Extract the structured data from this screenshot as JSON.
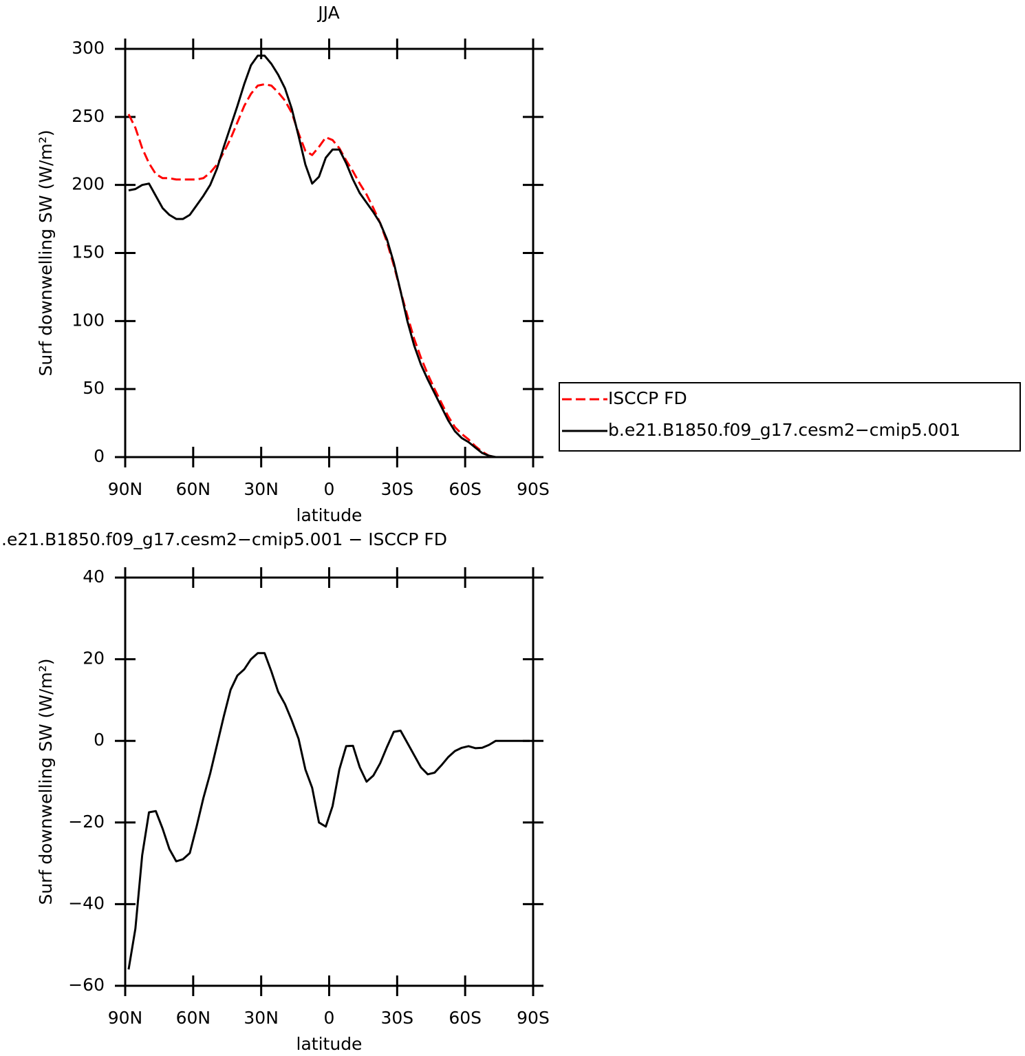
{
  "chart_data": [
    {
      "type": "line",
      "title": "JJA",
      "xlabel": "latitude",
      "ylabel": "Surf downwelling SW (W/m²)",
      "x": [
        88.5,
        85.5,
        82.5,
        79.5,
        76.5,
        73.5,
        70.5,
        67.5,
        64.5,
        61.5,
        58.5,
        55.5,
        52.5,
        49.5,
        46.5,
        43.5,
        40.5,
        37.5,
        34.5,
        31.5,
        28.5,
        25.5,
        22.5,
        19.5,
        16.5,
        13.5,
        10.5,
        7.5,
        4.5,
        1.5,
        -1.5,
        -4.5,
        -7.5,
        -10.5,
        -13.5,
        -16.5,
        -19.5,
        -22.5,
        -25.5,
        -28.5,
        -31.5,
        -34.5,
        -37.5,
        -40.5,
        -43.5,
        -46.5,
        -49.5,
        -52.5,
        -55.5,
        -58.5,
        -61.5,
        -64.5,
        -67.5,
        -70.5,
        -73.5,
        -76.5,
        -79.5,
        -82.5,
        -85.5,
        -88.5
      ],
      "series": [
        {
          "name": "ISCCP FD",
          "color": "#ff0000",
          "dashed": true,
          "values": [
            252,
            242,
            227,
            216,
            208,
            205,
            205,
            204,
            204,
            204,
            204,
            205,
            209,
            215,
            224,
            234,
            246,
            258,
            267,
            273,
            274,
            273,
            268,
            262,
            253,
            238,
            225,
            222,
            228,
            235,
            233,
            227,
            218,
            210,
            201,
            193,
            183,
            172,
            158,
            141,
            122,
            104,
            87,
            73,
            61,
            50,
            40,
            30,
            22,
            17,
            13,
            8,
            4,
            1,
            0,
            0,
            0,
            0,
            0,
            0
          ]
        },
        {
          "name": "b.e21.B1850.f09_g17.cesm2−cmip5.001",
          "color": "#000000",
          "dashed": false,
          "values": [
            196,
            197,
            200,
            201,
            192,
            183,
            178,
            175,
            175,
            178,
            185,
            192,
            200,
            212,
            228,
            243,
            258,
            274,
            288,
            295,
            295,
            289,
            281,
            271,
            256,
            236,
            215,
            201,
            206,
            220,
            226,
            226,
            216,
            204,
            194,
            187,
            180,
            172,
            160,
            143,
            122,
            100,
            82,
            68,
            57,
            47,
            37,
            27,
            19,
            14,
            11,
            7,
            3,
            1,
            0,
            0,
            0,
            0,
            0,
            0
          ]
        }
      ],
      "xlim": [
        90,
        -90
      ],
      "xticks": [
        {
          "value": 90,
          "label": "90N"
        },
        {
          "value": 60,
          "label": "60N"
        },
        {
          "value": 30,
          "label": "30N"
        },
        0,
        {
          "value": -30,
          "label": "30S"
        },
        {
          "value": -60,
          "label": "60S"
        },
        {
          "value": -90,
          "label": "90S"
        }
      ],
      "ylim": [
        0,
        300
      ],
      "yticks": [
        0,
        50,
        100,
        150,
        200,
        250,
        300
      ],
      "legend": "right"
    },
    {
      "type": "line",
      "title": ".e21.B1850.f09_g17.cesm2−cmip5.001 − ISCCP FD",
      "xlabel": "latitude",
      "ylabel": "Surf downwelling SW (W/m²)",
      "x": [
        88.5,
        85.5,
        82.5,
        79.5,
        76.5,
        73.5,
        70.5,
        67.5,
        64.5,
        61.5,
        58.5,
        55.5,
        52.5,
        49.5,
        46.5,
        43.5,
        40.5,
        37.5,
        34.5,
        31.5,
        28.5,
        25.5,
        22.5,
        19.5,
        16.5,
        13.5,
        10.5,
        7.5,
        4.5,
        1.5,
        -1.5,
        -4.5,
        -7.5,
        -10.5,
        -13.5,
        -16.5,
        -19.5,
        -22.5,
        -25.5,
        -28.5,
        -31.5,
        -34.5,
        -37.5,
        -40.5,
        -43.5,
        -46.5,
        -49.5,
        -52.5,
        -55.5,
        -58.5,
        -61.5,
        -64.5,
        -67.5,
        -70.5,
        -73.5,
        -76.5,
        -79.5,
        -82.5,
        -85.5,
        -88.5
      ],
      "series": [
        {
          "color": "#000000",
          "dashed": false,
          "values": [
            -56,
            -46,
            -28,
            -17.5,
            -17.2,
            -21.5,
            -26.5,
            -29.5,
            -29,
            -27.5,
            -21,
            -14,
            -8,
            -1,
            6,
            12.5,
            16,
            17.5,
            20,
            21.5,
            21.5,
            17,
            12,
            9,
            5,
            0.5,
            -7,
            -11.5,
            -20,
            -21,
            -16,
            -7,
            -1.3,
            -1.2,
            -6.5,
            -10,
            -8.5,
            -5.5,
            -1.5,
            2.2,
            2.5,
            -0.5,
            -3.5,
            -6.5,
            -8.2,
            -7.8,
            -6,
            -4,
            -2.5,
            -1.7,
            -1.3,
            -1.8,
            -1.7,
            -1,
            0,
            0,
            0,
            0,
            0,
            0
          ]
        }
      ],
      "xlim": [
        90,
        -90
      ],
      "xticks": [
        {
          "value": 90,
          "label": "90N"
        },
        {
          "value": 60,
          "label": "60N"
        },
        {
          "value": 30,
          "label": "30N"
        },
        0,
        {
          "value": -30,
          "label": "30S"
        },
        {
          "value": -60,
          "label": "60S"
        },
        {
          "value": -90,
          "label": "90S"
        }
      ],
      "ylim": [
        -60,
        40
      ],
      "yticks": [
        {
          "value": -60,
          "label": "−60"
        },
        {
          "value": -40,
          "label": "−40"
        },
        {
          "value": -20,
          "label": "−20"
        },
        0,
        20,
        40
      ]
    }
  ]
}
